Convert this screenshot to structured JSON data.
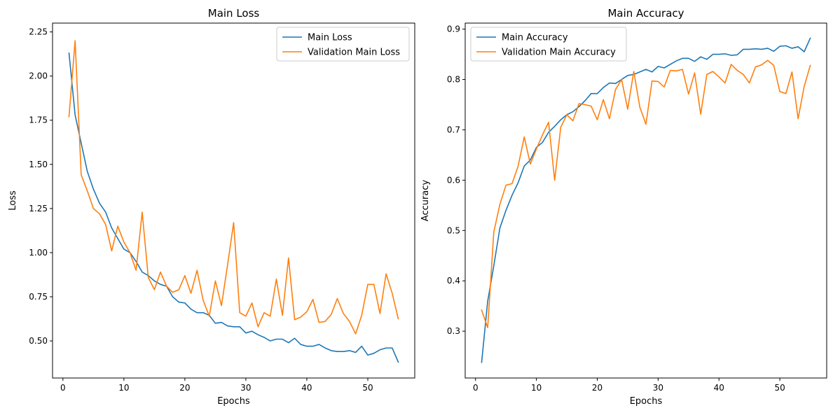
{
  "chart_data": [
    {
      "type": "line",
      "title": "Main Loss",
      "xlabel": "Epochs",
      "ylabel": "Loss",
      "xlim": [
        -1.7,
        57.7
      ],
      "ylim": [
        0.29,
        2.3
      ],
      "xticks": [
        0,
        10,
        20,
        30,
        40,
        50
      ],
      "yticks": [
        0.5,
        0.75,
        1.0,
        1.25,
        1.5,
        1.75,
        2.0,
        2.25
      ],
      "ytick_decimals": 2,
      "grid": false,
      "legend_position": "top-right",
      "x": [
        1,
        2,
        3,
        4,
        5,
        6,
        7,
        8,
        9,
        10,
        11,
        12,
        13,
        14,
        15,
        16,
        17,
        18,
        19,
        20,
        21,
        22,
        23,
        24,
        25,
        26,
        27,
        28,
        29,
        30,
        31,
        32,
        33,
        34,
        35,
        36,
        37,
        38,
        39,
        40,
        41,
        42,
        43,
        44,
        45,
        46,
        47,
        48,
        49,
        50,
        51,
        52,
        53,
        54,
        55
      ],
      "series": [
        {
          "name": "Main Loss",
          "color": "#1f77b4",
          "values": [
            2.13,
            1.78,
            1.62,
            1.46,
            1.36,
            1.28,
            1.23,
            1.14,
            1.08,
            1.02,
            1.0,
            0.95,
            0.89,
            0.87,
            0.84,
            0.82,
            0.81,
            0.75,
            0.72,
            0.715,
            0.68,
            0.66,
            0.66,
            0.645,
            0.6,
            0.605,
            0.585,
            0.58,
            0.58,
            0.545,
            0.555,
            0.535,
            0.52,
            0.5,
            0.51,
            0.51,
            0.49,
            0.515,
            0.48,
            0.47,
            0.47,
            0.48,
            0.46,
            0.445,
            0.44,
            0.44,
            0.445,
            0.435,
            0.47,
            0.42,
            0.43,
            0.45,
            0.46,
            0.46,
            0.38
          ]
        },
        {
          "name": "Validation Main Loss",
          "color": "#ff7f0e",
          "values": [
            1.77,
            2.2,
            1.44,
            1.35,
            1.25,
            1.22,
            1.16,
            1.01,
            1.15,
            1.06,
            1.0,
            0.9,
            1.23,
            0.86,
            0.79,
            0.89,
            0.81,
            0.775,
            0.79,
            0.87,
            0.77,
            0.9,
            0.73,
            0.64,
            0.84,
            0.7,
            0.93,
            1.17,
            0.66,
            0.64,
            0.715,
            0.58,
            0.66,
            0.64,
            0.85,
            0.645,
            0.97,
            0.62,
            0.635,
            0.665,
            0.735,
            0.605,
            0.61,
            0.65,
            0.74,
            0.655,
            0.61,
            0.54,
            0.645,
            0.82,
            0.82,
            0.655,
            0.88,
            0.77,
            0.625
          ]
        }
      ]
    },
    {
      "type": "line",
      "title": "Main Accuracy",
      "xlabel": "Epochs",
      "ylabel": "Accuracy",
      "xlim": [
        -1.7,
        57.7
      ],
      "ylim": [
        0.207,
        0.912
      ],
      "xticks": [
        0,
        10,
        20,
        30,
        40,
        50
      ],
      "yticks": [
        0.3,
        0.4,
        0.5,
        0.6,
        0.7,
        0.8,
        0.9
      ],
      "ytick_decimals": 1,
      "grid": false,
      "legend_position": "top-left",
      "x": [
        1,
        2,
        3,
        4,
        5,
        6,
        7,
        8,
        9,
        10,
        11,
        12,
        13,
        14,
        15,
        16,
        17,
        18,
        19,
        20,
        21,
        22,
        23,
        24,
        25,
        26,
        27,
        28,
        29,
        30,
        31,
        32,
        33,
        34,
        35,
        36,
        37,
        38,
        39,
        40,
        41,
        42,
        43,
        44,
        45,
        46,
        47,
        48,
        49,
        50,
        51,
        52,
        53,
        54,
        55
      ],
      "series": [
        {
          "name": "Main Accuracy",
          "color": "#1f77b4",
          "values": [
            0.238,
            0.36,
            0.43,
            0.505,
            0.54,
            0.57,
            0.595,
            0.628,
            0.64,
            0.665,
            0.675,
            0.695,
            0.707,
            0.72,
            0.73,
            0.736,
            0.746,
            0.758,
            0.772,
            0.772,
            0.784,
            0.793,
            0.792,
            0.8,
            0.808,
            0.81,
            0.815,
            0.82,
            0.815,
            0.826,
            0.823,
            0.83,
            0.837,
            0.842,
            0.842,
            0.836,
            0.845,
            0.84,
            0.85,
            0.85,
            0.851,
            0.848,
            0.849,
            0.86,
            0.86,
            0.861,
            0.86,
            0.862,
            0.856,
            0.866,
            0.867,
            0.862,
            0.865,
            0.855,
            0.882
          ]
        },
        {
          "name": "Validation Main Accuracy",
          "color": "#ff7f0e",
          "values": [
            0.342,
            0.307,
            0.497,
            0.552,
            0.59,
            0.593,
            0.628,
            0.686,
            0.632,
            0.662,
            0.69,
            0.715,
            0.6,
            0.705,
            0.73,
            0.718,
            0.752,
            0.75,
            0.747,
            0.72,
            0.76,
            0.722,
            0.78,
            0.8,
            0.741,
            0.816,
            0.745,
            0.711,
            0.797,
            0.796,
            0.785,
            0.818,
            0.817,
            0.82,
            0.771,
            0.813,
            0.731,
            0.81,
            0.816,
            0.805,
            0.793,
            0.83,
            0.818,
            0.81,
            0.793,
            0.825,
            0.829,
            0.838,
            0.828,
            0.776,
            0.772,
            0.815,
            0.722,
            0.786,
            0.828
          ]
        }
      ]
    }
  ]
}
